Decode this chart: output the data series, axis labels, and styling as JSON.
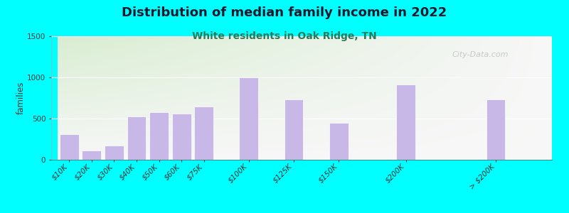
{
  "title": "Distribution of median family income in 2022",
  "subtitle": "White residents in Oak Ridge, TN",
  "ylabel": "families",
  "categories": [
    "$10K",
    "$20K",
    "$30K",
    "$40K",
    "$50K",
    "$60K",
    "$75K",
    "$100K",
    "$125K",
    "$150K",
    "$200K",
    "> $200K"
  ],
  "values": [
    310,
    110,
    170,
    530,
    580,
    560,
    650,
    1000,
    730,
    450,
    910,
    730
  ],
  "bar_color": "#c8b8e8",
  "ylim": [
    0,
    1500
  ],
  "yticks": [
    0,
    500,
    1000,
    1500
  ],
  "fig_bg_color": "#00ffff",
  "plot_bg_left_top": "#d8ecd0",
  "plot_bg_right_bottom": "#f8f8f4",
  "title_fontsize": 13,
  "subtitle_fontsize": 10,
  "title_color": "#1a1a2e",
  "subtitle_color": "#2a7a5a",
  "watermark": "City-Data.com",
  "bar_widths": [
    0.8,
    0.8,
    0.8,
    0.8,
    0.8,
    0.8,
    0.8,
    0.8,
    0.8,
    0.8,
    0.8,
    0.8
  ],
  "bar_positions": [
    0,
    1,
    2,
    3,
    4,
    5,
    6,
    8,
    10,
    12,
    15,
    19
  ]
}
